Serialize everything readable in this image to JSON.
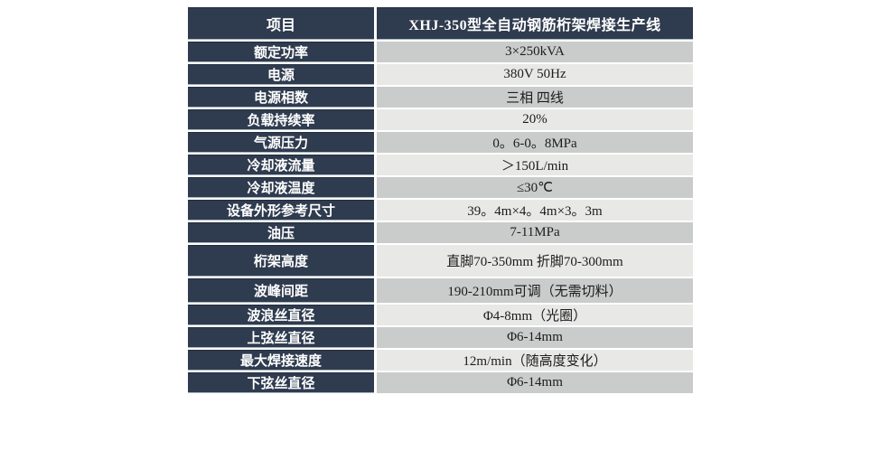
{
  "page": {
    "background": "#ffffff"
  },
  "colors": {
    "header_bg": "#2f3b4e",
    "label_bg": "#2f3b4e",
    "value_bg_odd": "#cacccb",
    "value_bg_even": "#e8e8e7",
    "label_text": "#ffffff",
    "value_text": "#1c1c1c"
  },
  "chart_data": {
    "type": "table",
    "title": "XHJ-350型全自动钢筋桁架焊接生产线",
    "columns": [
      "项目",
      "XHJ-350型全自动钢筋桁架焊接生产线"
    ],
    "rows": [
      [
        "额定功率",
        "3×250kVA"
      ],
      [
        "电源",
        "380V 50Hz"
      ],
      [
        "电源相数",
        "三相 四线"
      ],
      [
        "负载持续率",
        "20%"
      ],
      [
        "气源压力",
        "0。6-0。8MPa"
      ],
      [
        "冷却液流量",
        "＞150L/min"
      ],
      [
        "冷却液温度",
        "≤30℃"
      ],
      [
        "设备外形参考尺寸",
        "39。4m×4。4m×3。3m"
      ],
      [
        "油压",
        "7-11MPa"
      ],
      [
        "桁架高度",
        "直脚70-350mm 折脚70-300mm"
      ],
      [
        "波峰间距",
        "190-210mm可调（无需切料）"
      ],
      [
        "波浪丝直径",
        "Φ4-8mm（光圈）"
      ],
      [
        "上弦丝直径",
        "Φ6-14mm"
      ],
      [
        "最大焊接速度",
        "12m/min（随高度变化）"
      ],
      [
        "下弦丝直径",
        "Φ6-14mm"
      ]
    ]
  },
  "table": {
    "header": {
      "label": "项目",
      "value": "XHJ-350型全自动钢筋桁架焊接生产线"
    },
    "rows": [
      {
        "label": "额定功率",
        "value": "3×250kVA"
      },
      {
        "label": "电源",
        "value": "380V 50Hz"
      },
      {
        "label": "电源相数",
        "value": "三相 四线"
      },
      {
        "label": "负载持续率",
        "value": "20%"
      },
      {
        "label": "气源压力",
        "value": "0。6-0。8MPa"
      },
      {
        "label": "冷却液流量",
        "value": "＞150L/min"
      },
      {
        "label": "冷却液温度",
        "value": "≤30℃"
      },
      {
        "label": "设备外形参考尺寸",
        "value": "39。4m×4。4m×3。3m"
      },
      {
        "label": "油压",
        "value": "7-11MPa"
      },
      {
        "label": "桁架高度",
        "value": "直脚70-350mm 折脚70-300mm"
      },
      {
        "label": "波峰间距",
        "value": "190-210mm可调（无需切料）"
      },
      {
        "label": "波浪丝直径",
        "value": "Φ4-8mm（光圈）"
      },
      {
        "label": "上弦丝直径",
        "value": "Φ6-14mm"
      },
      {
        "label": "最大焊接速度",
        "value": "12m/min（随高度变化）"
      },
      {
        "label": "下弦丝直径",
        "value": "Φ6-14mm"
      }
    ]
  }
}
